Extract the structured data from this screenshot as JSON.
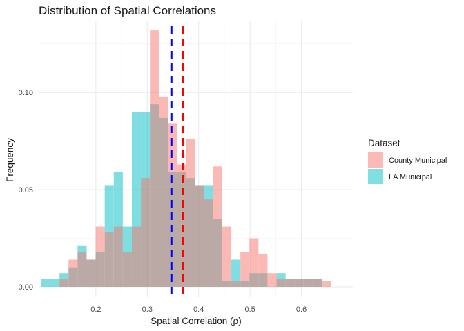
{
  "chart_data": {
    "type": "histogram",
    "title": "Distribution of Spatial Correlations",
    "xlabel": "Spatial Correlation (ρ)",
    "ylabel": "Frequency",
    "xlim": [
      0.09,
      0.7
    ],
    "ylim": [
      -0.005,
      0.137
    ],
    "x_ticks": [
      0.2,
      0.3,
      0.4,
      0.5,
      0.6
    ],
    "x_tick_labels": [
      "0.2",
      "0.3",
      "0.4",
      "0.5",
      "0.6"
    ],
    "y_ticks": [
      0.0,
      0.05,
      0.1
    ],
    "y_tick_labels": [
      "0.00",
      "0.05",
      "0.10"
    ],
    "grid": true,
    "legend_position": "right",
    "bin_width": 0.0176,
    "bin_start": 0.094,
    "series": [
      {
        "name": "County Municipal",
        "color": "#F8766D",
        "values": [
          0,
          0,
          0.004,
          0.014,
          0.018,
          0.014,
          0.031,
          0.028,
          0.031,
          0.018,
          0.031,
          0.056,
          0.132,
          0.098,
          0.084,
          0.063,
          0.076,
          0.052,
          0.045,
          0.062,
          0.031,
          0.003,
          0.018,
          0.025,
          0.017,
          0.007,
          0.004,
          0.004,
          0.004,
          0.004,
          0.004,
          0.003
        ]
      },
      {
        "name": "LA Municipal",
        "color": "#00BFC4",
        "values": [
          0.004,
          0.004,
          0.007,
          0.01,
          0.021,
          0.014,
          0.018,
          0.052,
          0.059,
          0.031,
          0.09,
          0.09,
          0.094,
          0.087,
          0.059,
          0.059,
          0.056,
          0.052,
          0.052,
          0.035,
          0.003,
          0.014,
          0.003,
          0.007,
          0.007,
          0,
          0.007,
          0.004,
          0.004,
          0.004,
          0.004,
          0
        ]
      }
    ],
    "vlines": [
      {
        "x": 0.347,
        "color": "#0000FF"
      },
      {
        "x": 0.37,
        "color": "#FF0000"
      }
    ]
  },
  "legend": {
    "title": "Dataset",
    "items": [
      {
        "label": "County Municipal",
        "color": "#F8766D"
      },
      {
        "label": "LA Municipal",
        "color": "#00BFC4"
      }
    ]
  }
}
